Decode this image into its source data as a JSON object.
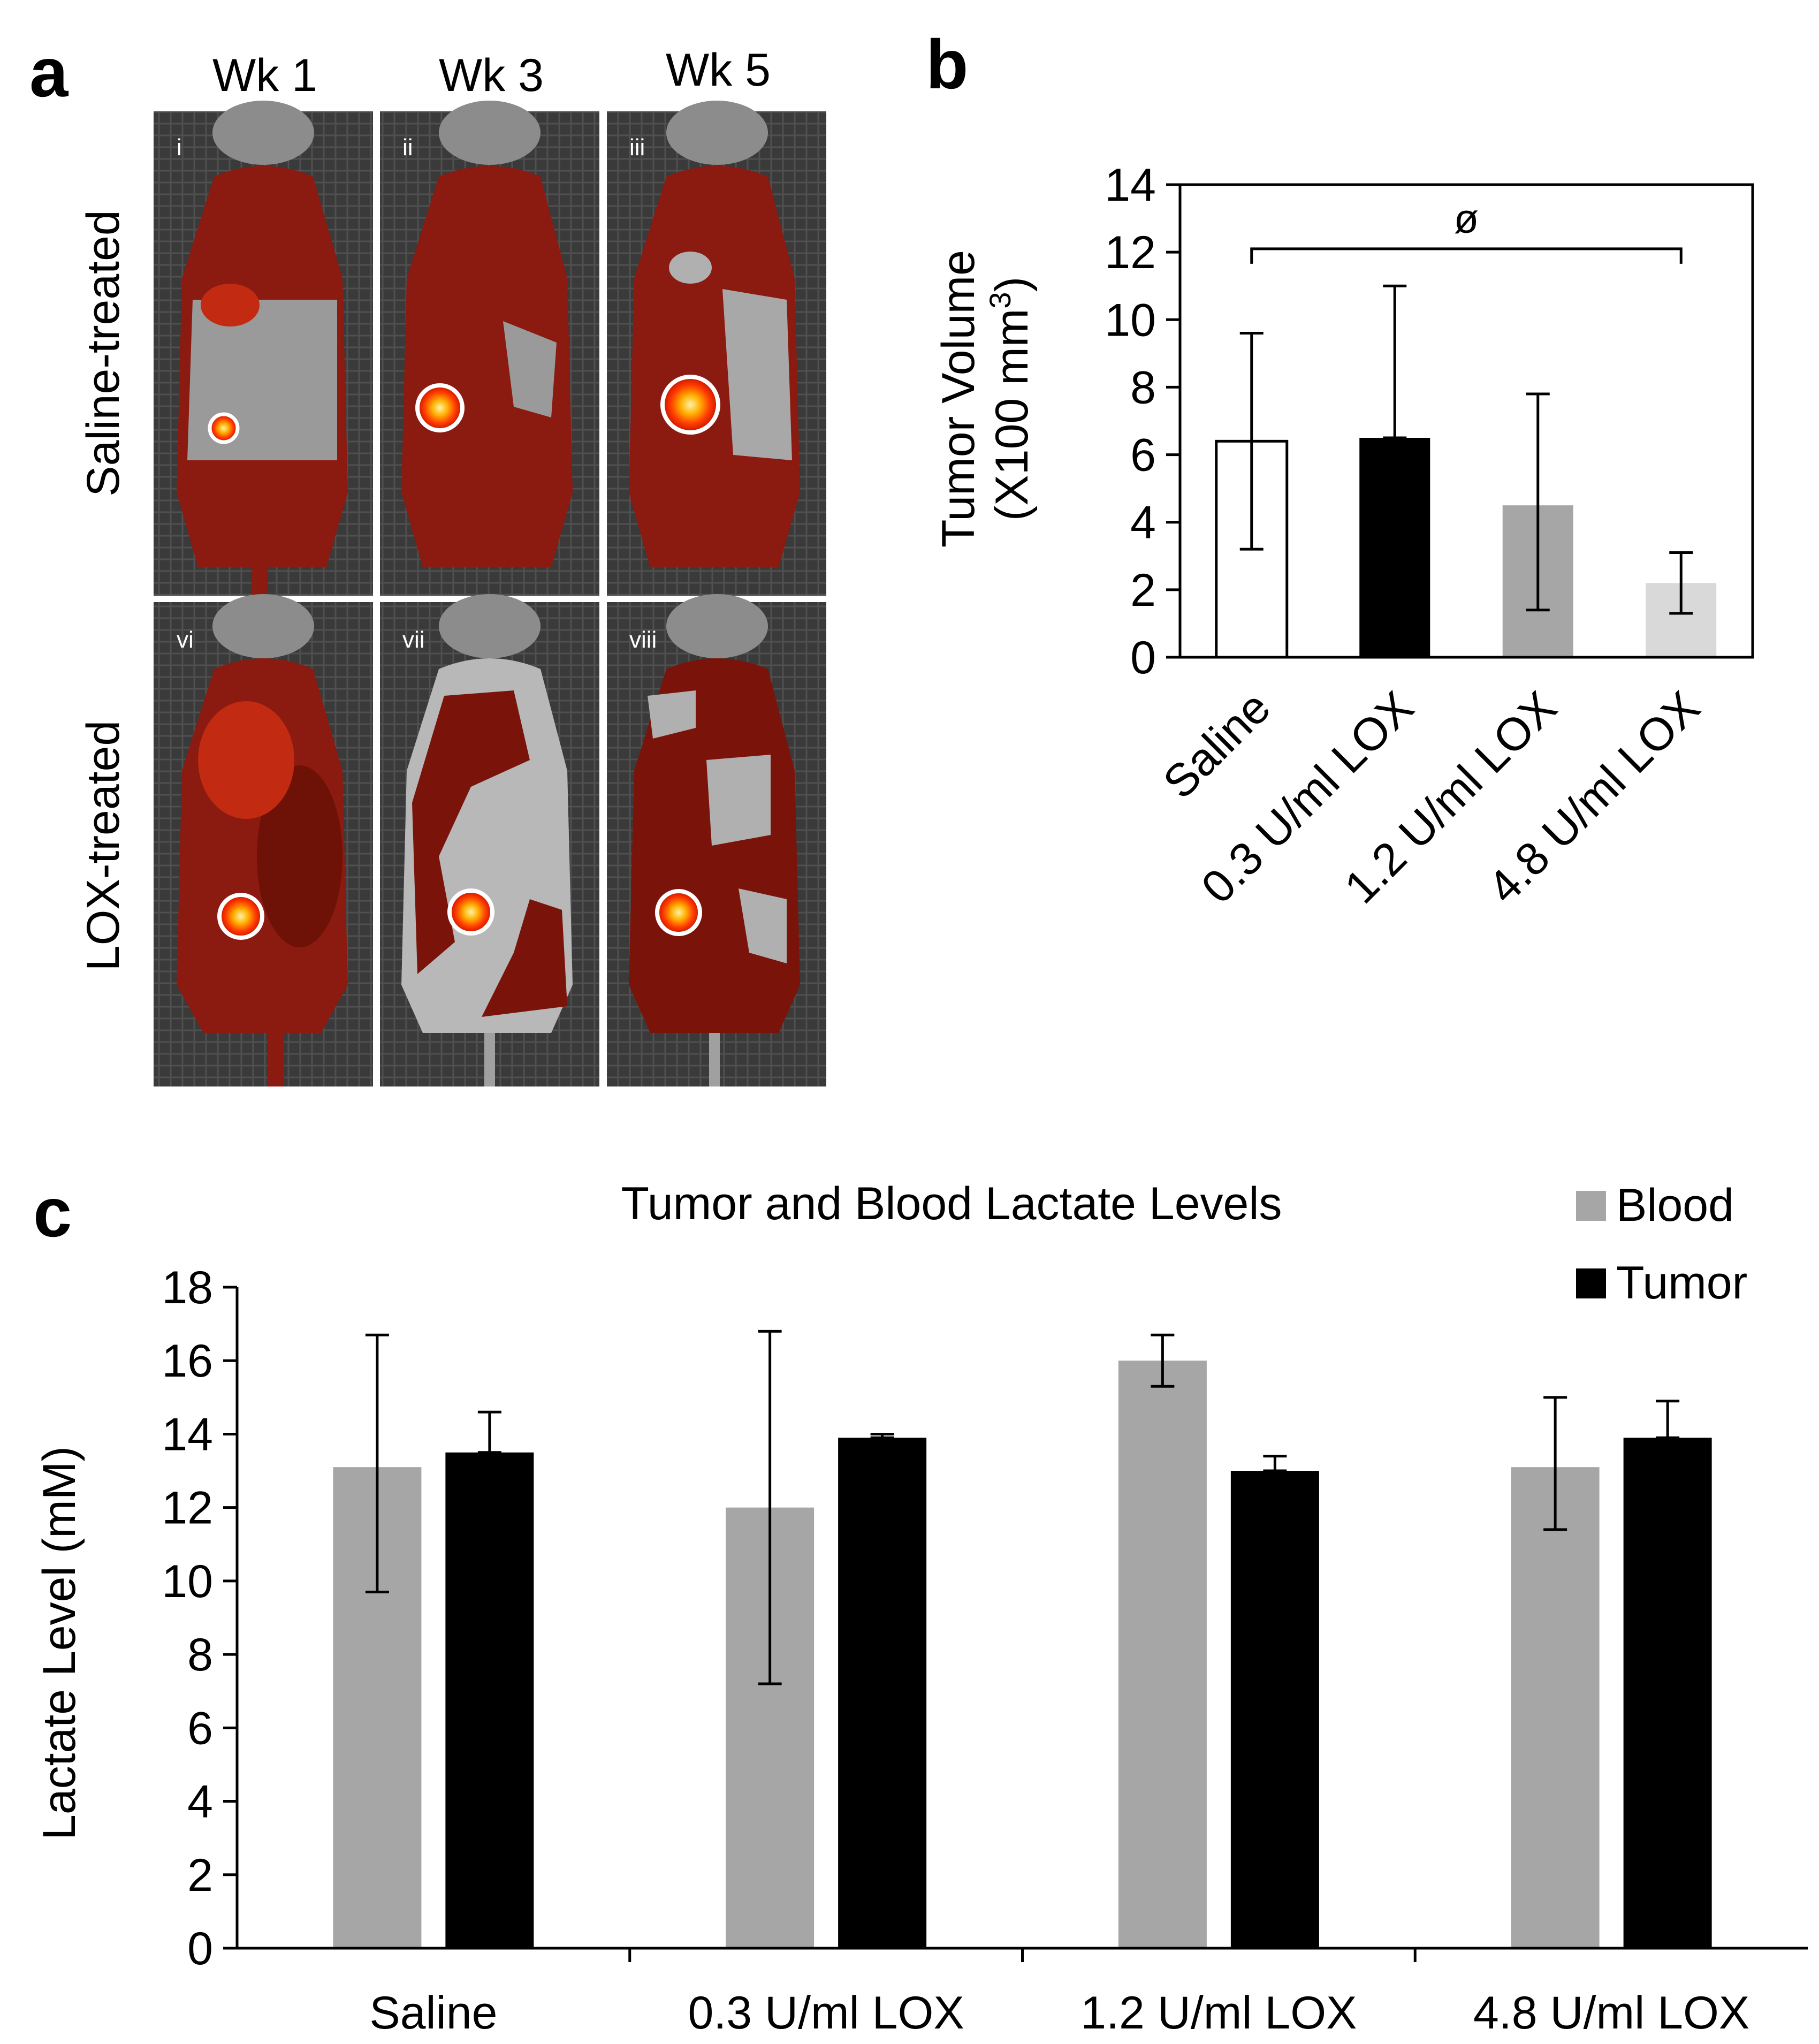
{
  "panel_a": {
    "letter": "a",
    "columns": [
      "Wk 1",
      "Wk 3",
      "Wk 5"
    ],
    "rows": [
      "Saline-treated",
      "LOX-treated"
    ],
    "image_labels": [
      "i",
      "ii",
      "iii",
      "vi",
      "vii",
      "viii"
    ]
  },
  "panel_b": {
    "letter": "b",
    "significance_marker": "ø"
  },
  "panel_c": {
    "letter": "c"
  },
  "colors": {
    "saline": "#ffffff",
    "lox_0_3": "#000000",
    "lox_1_2": "#a6a6a6",
    "lox_4_8": "#d9d9d9",
    "blood": "#a6a6a6",
    "tumor": "#000000",
    "bioluminescence": "#8b1a10"
  },
  "chart_data": [
    {
      "id": "b",
      "type": "bar",
      "title": "",
      "ylabel": "Tumor Volume (X100 mm3)",
      "ylabel_line1": "Tumor Volume",
      "ylabel_line2": "(X100 mm",
      "ylabel_sup": "3",
      "ylabel_close": ")",
      "xlabel": "",
      "ylim": [
        0,
        14
      ],
      "yticks": [
        "0",
        "2",
        "4",
        "6",
        "8",
        "10",
        "12",
        "14"
      ],
      "categories": [
        "Saline",
        "0.3 U/ml LOX",
        "1.2 U/ml LOX",
        "4.8 U/ml LOX"
      ],
      "values": [
        6.4,
        6.5,
        4.5,
        2.2
      ],
      "error_low": [
        3.2,
        6.5,
        1.4,
        1.3
      ],
      "error_high": [
        9.6,
        11.0,
        7.8,
        3.1
      ],
      "grid": false,
      "frame": true,
      "annotation": {
        "text": "ø",
        "from": "Saline",
        "to": "4.8 U/ml LOX",
        "y": 12.1
      }
    },
    {
      "id": "c",
      "type": "bar",
      "title": "Tumor and Blood Lactate Levels",
      "ylabel": "Lactate Level (mM)",
      "xlabel": "",
      "ylim": [
        0,
        18
      ],
      "yticks": [
        "0",
        "2",
        "4",
        "6",
        "8",
        "10",
        "12",
        "14",
        "16",
        "18"
      ],
      "categories": [
        "Saline",
        "0.3 U/ml LOX",
        "1.2 U/ml LOX",
        "4.8 U/ml LOX"
      ],
      "series": [
        {
          "name": "Blood",
          "values": [
            13.1,
            12.0,
            16.0,
            13.1
          ],
          "error_low": [
            9.7,
            7.2,
            15.3,
            11.4
          ],
          "error_high": [
            16.7,
            16.8,
            16.7,
            15.0
          ]
        },
        {
          "name": "Tumor",
          "values": [
            13.5,
            13.9,
            13.0,
            13.9
          ],
          "error_low": [
            13.5,
            13.9,
            13.0,
            13.9
          ],
          "error_high": [
            14.6,
            14.0,
            13.4,
            14.9
          ]
        }
      ],
      "grid": false,
      "legend": "top-right"
    }
  ]
}
